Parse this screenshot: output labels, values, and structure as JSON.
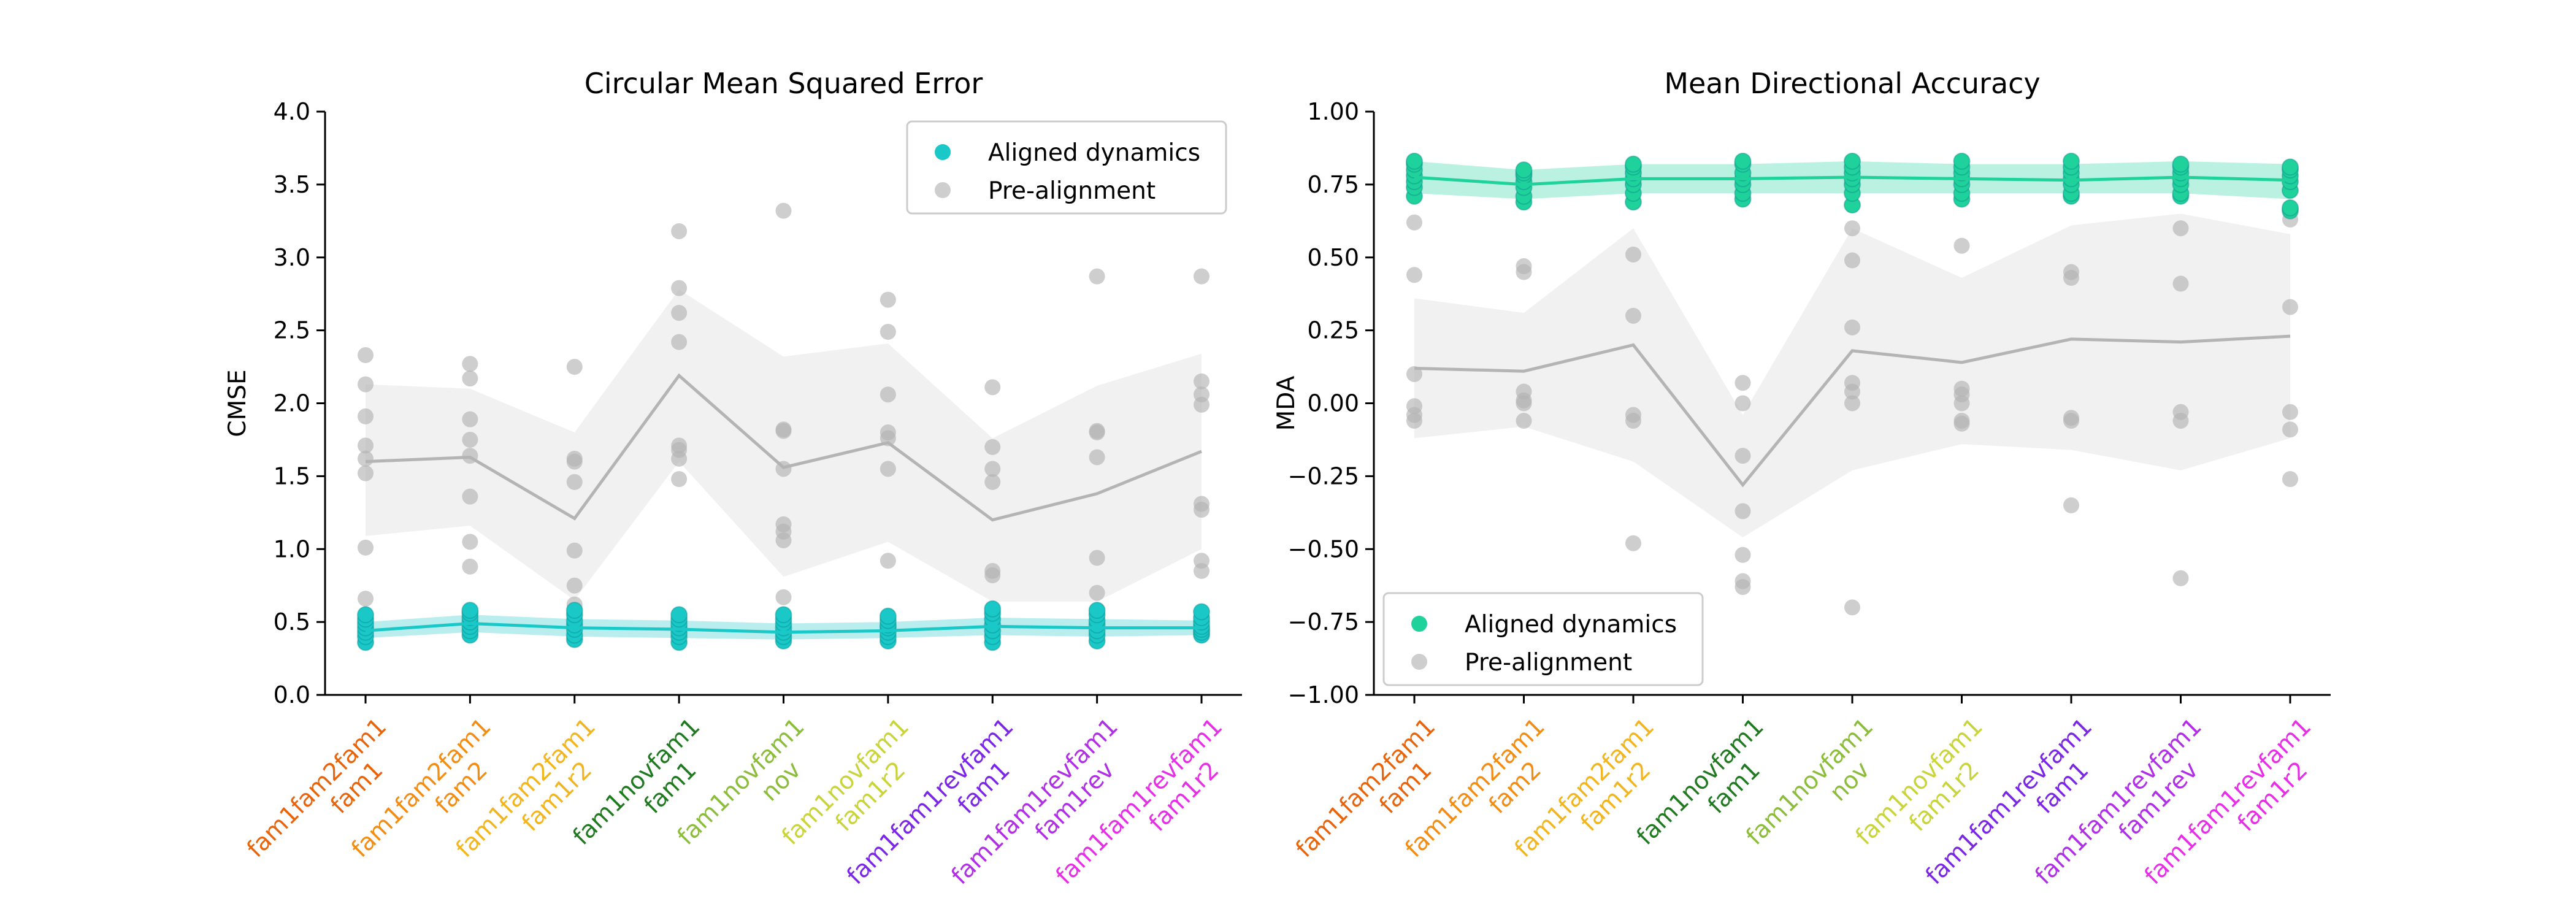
{
  "chart_data": [
    {
      "type": "scatter",
      "title": "Circular Mean Squared Error",
      "ylabel": "CMSE",
      "ylim": [
        0,
        4
      ],
      "yticks": [
        0.0,
        0.5,
        1.0,
        1.5,
        2.0,
        2.5,
        3.0,
        3.5,
        4.0
      ],
      "ytick_labels": [
        "0.0",
        "0.5",
        "1.0",
        "1.5",
        "2.0",
        "2.5",
        "3.0",
        "3.5",
        "4.0"
      ],
      "grid": false,
      "legend_position": "top-right",
      "categories": [
        {
          "line1": "fam1fam2fam1",
          "line2": "fam1",
          "color": "#e8640c"
        },
        {
          "line1": "fam1fam2fam1",
          "line2": "fam2",
          "color": "#f28c12"
        },
        {
          "line1": "fam1fam2fam1",
          "line2": "fam1r2",
          "color": "#f2b51d"
        },
        {
          "line1": "fam1novfam1",
          "line2": "fam1",
          "color": "#1f7a1f"
        },
        {
          "line1": "fam1novfam1",
          "line2": "nov",
          "color": "#8cbd3a"
        },
        {
          "line1": "fam1novfam1",
          "line2": "fam1r2",
          "color": "#c8d43a"
        },
        {
          "line1": "fam1fam1revfam1",
          "line2": "fam1",
          "color": "#7b26e6"
        },
        {
          "line1": "fam1fam1revfam1",
          "line2": "fam1rev",
          "color": "#b02ee6"
        },
        {
          "line1": "fam1fam1revfam1",
          "line2": "fam1r2",
          "color": "#e62ee6"
        }
      ],
      "series": [
        {
          "name": "Aligned dynamics",
          "color": "#1ac8c8",
          "mean": [
            0.44,
            0.49,
            0.46,
            0.45,
            0.43,
            0.44,
            0.47,
            0.46,
            0.46
          ],
          "band_low": [
            0.39,
            0.43,
            0.4,
            0.39,
            0.38,
            0.39,
            0.41,
            0.4,
            0.41
          ],
          "band_high": [
            0.5,
            0.55,
            0.52,
            0.51,
            0.49,
            0.5,
            0.53,
            0.52,
            0.51
          ],
          "points": [
            [
              0.36,
              0.4,
              0.43,
              0.46,
              0.49,
              0.52,
              0.55
            ],
            [
              0.41,
              0.44,
              0.47,
              0.5,
              0.53,
              0.56,
              0.58
            ],
            [
              0.38,
              0.41,
              0.45,
              0.48,
              0.51,
              0.55,
              0.58
            ],
            [
              0.36,
              0.4,
              0.43,
              0.46,
              0.49,
              0.52,
              0.55
            ],
            [
              0.37,
              0.4,
              0.43,
              0.46,
              0.49,
              0.52,
              0.55
            ],
            [
              0.37,
              0.4,
              0.43,
              0.46,
              0.48,
              0.51,
              0.54
            ],
            [
              0.36,
              0.4,
              0.44,
              0.48,
              0.52,
              0.56,
              0.59
            ],
            [
              0.37,
              0.41,
              0.44,
              0.48,
              0.51,
              0.55,
              0.58
            ],
            [
              0.41,
              0.43,
              0.45,
              0.47,
              0.5,
              0.53,
              0.57
            ]
          ]
        },
        {
          "name": "Pre-alignment",
          "color": "#b4b4b4",
          "mean": [
            1.6,
            1.63,
            1.21,
            2.19,
            1.56,
            1.73,
            1.2,
            1.38,
            1.67
          ],
          "band_low": [
            1.09,
            1.16,
            0.65,
            1.6,
            0.81,
            1.05,
            0.64,
            0.64,
            1.0
          ],
          "band_high": [
            2.13,
            2.1,
            1.8,
            2.78,
            2.32,
            2.41,
            1.76,
            2.12,
            2.34
          ],
          "points": [
            [
              0.66,
              1.01,
              1.52,
              1.62,
              1.71,
              1.91,
              2.13,
              2.33
            ],
            [
              0.88,
              1.05,
              1.36,
              1.64,
              1.75,
              1.89,
              2.17,
              2.27
            ],
            [
              0.62,
              0.75,
              0.99,
              1.46,
              1.6,
              1.62,
              2.25
            ],
            [
              1.48,
              1.62,
              1.68,
              1.71,
              2.42,
              2.62,
              2.79,
              3.18
            ],
            [
              0.67,
              1.06,
              1.12,
              1.17,
              1.55,
              1.81,
              1.82,
              3.32
            ],
            [
              0.53,
              0.92,
              1.55,
              1.76,
              1.8,
              2.06,
              2.49,
              2.71
            ],
            [
              0.55,
              0.82,
              0.85,
              1.46,
              1.55,
              1.7,
              2.11
            ],
            [
              0.58,
              0.7,
              0.94,
              1.63,
              1.8,
              1.81,
              2.87
            ],
            [
              0.85,
              0.92,
              1.27,
              1.31,
              1.99,
              2.06,
              2.15,
              2.87
            ]
          ]
        }
      ]
    },
    {
      "type": "scatter",
      "title": "Mean Directional Accuracy",
      "ylabel": "MDA",
      "ylim": [
        -1,
        1
      ],
      "yticks": [
        -1.0,
        -0.75,
        -0.5,
        -0.25,
        0.0,
        0.25,
        0.5,
        0.75,
        1.0
      ],
      "ytick_labels": [
        "−1.00",
        "−0.75",
        "−0.50",
        "−0.25",
        "0.00",
        "0.25",
        "0.50",
        "0.75",
        "1.00"
      ],
      "grid": false,
      "legend_position": "bottom-left",
      "categories": [
        {
          "line1": "fam1fam2fam1",
          "line2": "fam1",
          "color": "#e8640c"
        },
        {
          "line1": "fam1fam2fam1",
          "line2": "fam2",
          "color": "#f28c12"
        },
        {
          "line1": "fam1fam2fam1",
          "line2": "fam1r2",
          "color": "#f2b51d"
        },
        {
          "line1": "fam1novfam1",
          "line2": "fam1",
          "color": "#1f7a1f"
        },
        {
          "line1": "fam1novfam1",
          "line2": "nov",
          "color": "#8cbd3a"
        },
        {
          "line1": "fam1novfam1",
          "line2": "fam1r2",
          "color": "#c8d43a"
        },
        {
          "line1": "fam1fam1revfam1",
          "line2": "fam1",
          "color": "#7b26e6"
        },
        {
          "line1": "fam1fam1revfam1",
          "line2": "fam1rev",
          "color": "#b02ee6"
        },
        {
          "line1": "fam1fam1revfam1",
          "line2": "fam1r2",
          "color": "#e62ee6"
        }
      ],
      "series": [
        {
          "name": "Aligned dynamics",
          "color": "#1fd19a",
          "mean": [
            0.775,
            0.75,
            0.77,
            0.77,
            0.775,
            0.77,
            0.765,
            0.775,
            0.765
          ],
          "band_low": [
            0.72,
            0.7,
            0.72,
            0.72,
            0.72,
            0.72,
            0.72,
            0.72,
            0.7
          ],
          "band_high": [
            0.83,
            0.8,
            0.82,
            0.82,
            0.83,
            0.82,
            0.82,
            0.83,
            0.82
          ],
          "points": [
            [
              0.71,
              0.74,
              0.76,
              0.78,
              0.8,
              0.82,
              0.83
            ],
            [
              0.69,
              0.71,
              0.74,
              0.76,
              0.78,
              0.79,
              0.8
            ],
            [
              0.69,
              0.72,
              0.75,
              0.77,
              0.79,
              0.81,
              0.82
            ],
            [
              0.7,
              0.72,
              0.75,
              0.77,
              0.79,
              0.82,
              0.83
            ],
            [
              0.68,
              0.72,
              0.75,
              0.77,
              0.79,
              0.81,
              0.83
            ],
            [
              0.7,
              0.72,
              0.75,
              0.77,
              0.79,
              0.81,
              0.83
            ],
            [
              0.71,
              0.72,
              0.75,
              0.77,
              0.79,
              0.81,
              0.83
            ],
            [
              0.71,
              0.72,
              0.75,
              0.77,
              0.79,
              0.81,
              0.82
            ],
            [
              0.66,
              0.67,
              0.73,
              0.76,
              0.78,
              0.8,
              0.81
            ]
          ]
        },
        {
          "name": "Pre-alignment",
          "color": "#b4b4b4",
          "mean": [
            0.12,
            0.11,
            0.2,
            -0.28,
            0.18,
            0.14,
            0.22,
            0.21,
            0.23
          ],
          "band_low": [
            -0.12,
            -0.08,
            -0.2,
            -0.46,
            -0.23,
            -0.14,
            -0.16,
            -0.23,
            -0.12
          ],
          "band_high": [
            0.36,
            0.31,
            0.6,
            -0.04,
            0.6,
            0.43,
            0.61,
            0.65,
            0.58
          ],
          "points": [
            [
              -0.06,
              -0.04,
              -0.01,
              0.1,
              0.44,
              0.62
            ],
            [
              -0.06,
              0.0,
              0.01,
              0.04,
              0.45,
              0.47
            ],
            [
              -0.48,
              -0.06,
              -0.04,
              0.3,
              0.51
            ],
            [
              -0.63,
              -0.61,
              -0.52,
              -0.37,
              -0.18,
              0.0,
              0.07
            ],
            [
              -0.7,
              0.0,
              0.04,
              0.07,
              0.26,
              0.49,
              0.6
            ],
            [
              -0.06,
              -0.07,
              0.0,
              0.03,
              0.05,
              0.54
            ],
            [
              -0.35,
              -0.06,
              -0.05,
              0.43,
              0.45
            ],
            [
              -0.6,
              -0.06,
              -0.03,
              0.41,
              0.6
            ],
            [
              -0.26,
              -0.09,
              -0.03,
              0.33,
              0.63
            ]
          ]
        }
      ]
    }
  ]
}
